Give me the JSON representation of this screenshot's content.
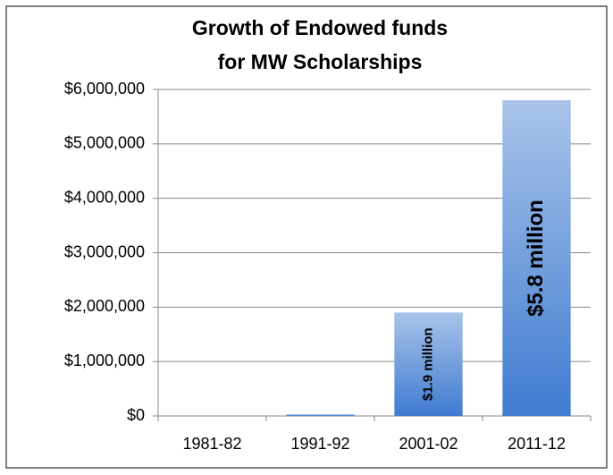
{
  "chart_data": {
    "type": "bar",
    "title": [
      "Growth of Endowed funds",
      "for MW Scholarships"
    ],
    "categories": [
      "1981-82",
      "1991-92",
      "2001-02",
      "2011-12"
    ],
    "values": [
      0,
      30000,
      1900000,
      5800000
    ],
    "value_labels": [
      null,
      null,
      "$1.9 million",
      "$5.8 million"
    ],
    "color": "#3f7bd0",
    "ylim": [
      0,
      6000000
    ],
    "yticks": [
      {
        "value": 0,
        "label": "$0"
      },
      {
        "value": 1000000,
        "label": "$1,000,000"
      },
      {
        "value": 2000000,
        "label": "$2,000,000"
      },
      {
        "value": 3000000,
        "label": "$3,000,000"
      },
      {
        "value": 4000000,
        "label": "$4,000,000"
      },
      {
        "value": 5000000,
        "label": "$5,000,000"
      },
      {
        "value": 6000000,
        "label": "$6,000,000"
      }
    ],
    "grid": true
  }
}
